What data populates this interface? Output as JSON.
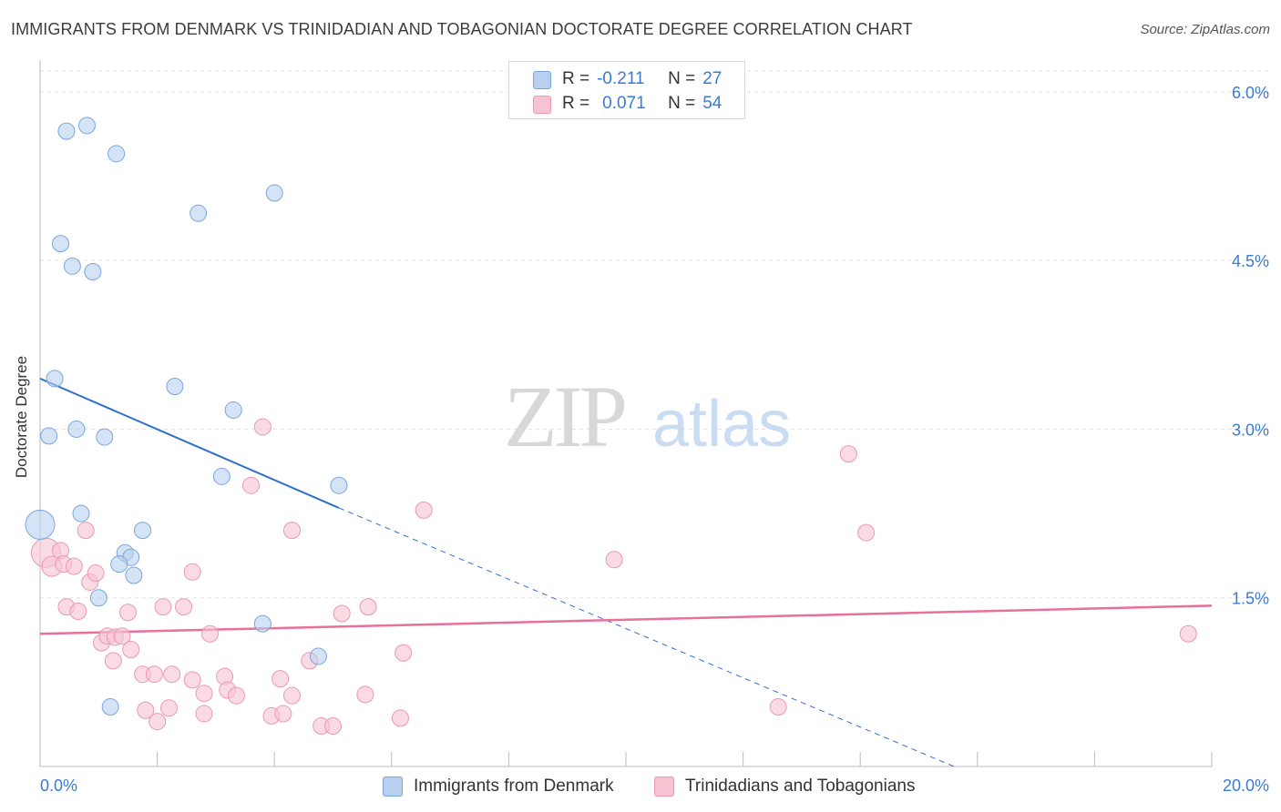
{
  "title": "IMMIGRANTS FROM DENMARK VS TRINIDADIAN AND TOBAGONIAN DOCTORATE DEGREE CORRELATION CHART",
  "source": "Source: ZipAtlas.com",
  "watermark": {
    "zip": "ZIP",
    "atlas": "atlas"
  },
  "legend": {
    "rows": [
      {
        "r_label": "R =",
        "r_value": "-0.211",
        "n_label": "N =",
        "n_value": "27"
      },
      {
        "r_label": "R =",
        "r_value": "0.071",
        "n_label": "N =",
        "n_value": "54"
      }
    ]
  },
  "bottom_legend": {
    "series1": "Immigrants from Denmark",
    "series2": "Trinidadians and Tobagonians"
  },
  "colors": {
    "blue_fill": "#b8d0f0",
    "blue_stroke": "#7aa6dd",
    "blue_line": "#2f6fcf",
    "pink_fill": "#f7c3d2",
    "pink_stroke": "#eb98b2",
    "pink_line": "#e8709a",
    "tick_label": "#3a7bd5",
    "grid": "#e3e3e3"
  },
  "chart_data": {
    "type": "scatter",
    "title": "IMMIGRANTS FROM DENMARK VS TRINIDADIAN AND TOBAGONIAN DOCTORATE DEGREE CORRELATION CHART",
    "xlabel": "",
    "ylabel": "Doctorate Degree",
    "xlim": [
      0,
      20
    ],
    "ylim": [
      0,
      6.25
    ],
    "x_tick_labels": [
      "0.0%",
      "20.0%"
    ],
    "y_ticks": [
      1.5,
      3.0,
      4.5,
      6.0
    ],
    "y_tick_labels": [
      "1.5%",
      "3.0%",
      "4.5%",
      "6.0%"
    ],
    "grid": true,
    "legend_position": "top-center",
    "series": [
      {
        "name": "Immigrants from Denmark",
        "r": -0.211,
        "n": 27,
        "points": [
          [
            0.45,
            5.65,
            9
          ],
          [
            0.8,
            5.7,
            9
          ],
          [
            1.3,
            5.45,
            9
          ],
          [
            4.0,
            5.1,
            9
          ],
          [
            2.7,
            4.92,
            9
          ],
          [
            0.35,
            4.65,
            9
          ],
          [
            0.55,
            4.45,
            9
          ],
          [
            0.9,
            4.4,
            9
          ],
          [
            0.25,
            3.45,
            9
          ],
          [
            2.3,
            3.38,
            9
          ],
          [
            3.3,
            3.17,
            9
          ],
          [
            0.15,
            2.94,
            9
          ],
          [
            0.62,
            3.0,
            9
          ],
          [
            1.1,
            2.93,
            9
          ],
          [
            3.1,
            2.58,
            9
          ],
          [
            5.1,
            2.5,
            9
          ],
          [
            0.7,
            2.25,
            9
          ],
          [
            0.0,
            2.15,
            16
          ],
          [
            1.75,
            2.1,
            9
          ],
          [
            1.45,
            1.9,
            9
          ],
          [
            1.55,
            1.86,
            9
          ],
          [
            1.35,
            1.8,
            9
          ],
          [
            1.6,
            1.7,
            9
          ],
          [
            1.0,
            1.5,
            9
          ],
          [
            3.8,
            1.27,
            9
          ],
          [
            4.75,
            0.98,
            9
          ],
          [
            1.2,
            0.53,
            9
          ]
        ],
        "trend": {
          "x": [
            0.0,
            5.1
          ],
          "y": [
            3.45,
            2.3
          ]
        },
        "trend_dashed": {
          "x": [
            5.1,
            15.6
          ],
          "y": [
            2.3,
            0.0
          ]
        }
      },
      {
        "name": "Trinidadians and Tobagonians",
        "r": 0.071,
        "n": 54,
        "points": [
          [
            0.1,
            1.9,
            16
          ],
          [
            0.2,
            1.78,
            11
          ],
          [
            0.35,
            1.92,
            9
          ],
          [
            0.4,
            1.8,
            9
          ],
          [
            0.58,
            1.78,
            9
          ],
          [
            0.78,
            2.1,
            9
          ],
          [
            0.85,
            1.64,
            9
          ],
          [
            0.95,
            1.72,
            9
          ],
          [
            0.45,
            1.42,
            9
          ],
          [
            0.65,
            1.38,
            9
          ],
          [
            1.05,
            1.1,
            9
          ],
          [
            1.15,
            1.16,
            9
          ],
          [
            1.28,
            1.15,
            9
          ],
          [
            1.4,
            1.16,
            9
          ],
          [
            1.55,
            1.04,
            9
          ],
          [
            1.25,
            0.94,
            9
          ],
          [
            1.5,
            1.37,
            9
          ],
          [
            2.1,
            1.42,
            9
          ],
          [
            2.45,
            1.42,
            9
          ],
          [
            2.6,
            1.73,
            9
          ],
          [
            2.9,
            1.18,
            9
          ],
          [
            1.75,
            0.82,
            9
          ],
          [
            1.95,
            0.82,
            9
          ],
          [
            2.25,
            0.82,
            9
          ],
          [
            2.6,
            0.77,
            9
          ],
          [
            2.8,
            0.65,
            9
          ],
          [
            3.15,
            0.8,
            9
          ],
          [
            3.2,
            0.68,
            9
          ],
          [
            3.35,
            0.63,
            9
          ],
          [
            1.8,
            0.5,
            9
          ],
          [
            2.0,
            0.4,
            9
          ],
          [
            2.2,
            0.52,
            9
          ],
          [
            2.8,
            0.47,
            9
          ],
          [
            3.6,
            2.5,
            9
          ],
          [
            3.8,
            3.02,
            9
          ],
          [
            4.3,
            2.1,
            9
          ],
          [
            3.95,
            0.45,
            9
          ],
          [
            4.15,
            0.47,
            9
          ],
          [
            4.3,
            0.63,
            9
          ],
          [
            4.1,
            0.78,
            9
          ],
          [
            4.6,
            0.94,
            9
          ],
          [
            4.8,
            0.36,
            9
          ],
          [
            5.0,
            0.36,
            9
          ],
          [
            5.15,
            1.36,
            9
          ],
          [
            5.55,
            0.64,
            9
          ],
          [
            5.6,
            1.42,
            9
          ],
          [
            6.2,
            1.01,
            9
          ],
          [
            6.15,
            0.43,
            9
          ],
          [
            6.55,
            2.28,
            9
          ],
          [
            9.8,
            1.84,
            9
          ],
          [
            13.8,
            2.78,
            9
          ],
          [
            14.1,
            2.08,
            9
          ],
          [
            12.6,
            0.53,
            9
          ],
          [
            19.6,
            1.18,
            9
          ]
        ],
        "trend": {
          "x": [
            0.0,
            20.0
          ],
          "y": [
            1.18,
            1.43
          ]
        }
      }
    ]
  }
}
